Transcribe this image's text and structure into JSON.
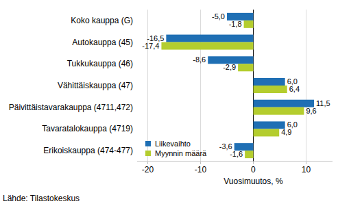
{
  "chart_data": {
    "type": "bar",
    "orientation": "horizontal",
    "categories": [
      "Koko kauppa (G)",
      "Autokauppa (45)",
      "Tukkukauppa (46)",
      "Vähittäiskauppa (47)",
      "Päivittäistavarakauppa (4711,472)",
      "Tavaratalokauppa (4719)",
      "Erikoiskauppa (474-477)"
    ],
    "series": [
      {
        "name": "Liikevaihto",
        "color": "#1f6fb4",
        "values": [
          -5.0,
          -16.5,
          -8.6,
          6.0,
          11.5,
          6.0,
          -3.6
        ],
        "value_labels": [
          "-5,0",
          "-16,5",
          "-8,6",
          "6,0",
          "11,5",
          "6,0",
          "-3,6"
        ]
      },
      {
        "name": "Myynnin määrä",
        "color": "#b4cd2e",
        "values": [
          -1.8,
          -17.4,
          -2.9,
          6.4,
          9.6,
          4.9,
          -1.6
        ],
        "value_labels": [
          "-1,8",
          "-17,4",
          "-2,9",
          "6,4",
          "9,6",
          "4,9",
          "-1,6"
        ]
      }
    ],
    "x_label": "Vuosimuutos, %",
    "source": "Lähde: Tilastokeskus",
    "xlim": [
      -22,
      15
    ],
    "xticks": [
      -20,
      -10,
      0,
      10
    ],
    "grid": true,
    "legend": "lower left",
    "data_labels": true
  }
}
